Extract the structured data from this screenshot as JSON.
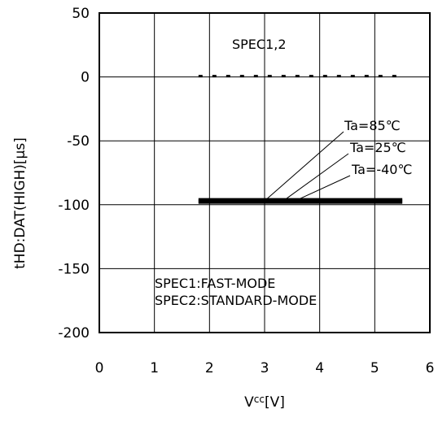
{
  "chart_data": {
    "type": "line",
    "xlabel": "Vcc[V]",
    "xlabel_main": "V",
    "xlabel_sub": "cc",
    "xlabel_unit": "[V]",
    "ylabel": "tHD:DAT(HIGH)[µs]",
    "xlim": [
      0,
      6
    ],
    "ylim": [
      -200,
      50
    ],
    "x_ticks": [
      "0",
      "1",
      "2",
      "3",
      "4",
      "5",
      "6"
    ],
    "y_ticks": [
      "50",
      "0",
      "-50",
      "-100",
      "-150",
      "-200"
    ],
    "grid": true,
    "series": [
      {
        "name": "Ta=85℃",
        "x": [
          1.8,
          5.5
        ],
        "y": [
          -97,
          -97
        ]
      },
      {
        "name": "Ta=25℃",
        "x": [
          1.8,
          5.5
        ],
        "y": [
          -97,
          -97
        ]
      },
      {
        "name": "Ta=-40℃",
        "x": [
          1.8,
          5.5
        ],
        "y": [
          -97,
          -97
        ]
      }
    ],
    "spec_line": {
      "label": "SPEC1,2",
      "x": [
        1.8,
        5.5
      ],
      "y": [
        0,
        0
      ],
      "style": "dotted"
    },
    "annotations": {
      "spec_label": "SPEC1,2",
      "legend_line1": "SPEC1:FAST-MODE",
      "legend_line2": "SPEC2:STANDARD-MODE"
    },
    "colors": {
      "line": "#000000",
      "grid": "#000000"
    }
  }
}
